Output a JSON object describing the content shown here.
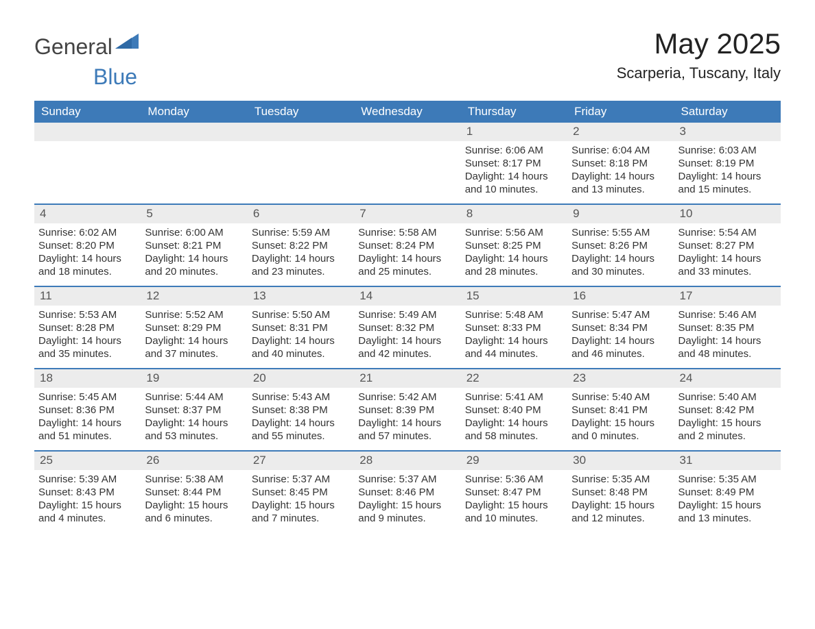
{
  "logo": {
    "text1": "General",
    "text2": "Blue",
    "accent_color": "#3d7ab8"
  },
  "title": "May 2025",
  "location": "Scarperia, Tuscany, Italy",
  "colors": {
    "header_bg": "#3d7ab8",
    "header_text": "#ffffff",
    "daynum_bg": "#ececec",
    "daynum_text": "#555555",
    "body_text": "#333333",
    "rule": "#3d7ab8",
    "page_bg": "#ffffff"
  },
  "typography": {
    "title_fontsize": 42,
    "location_fontsize": 22,
    "dow_fontsize": 17,
    "daynum_fontsize": 17,
    "body_fontsize": 15
  },
  "days_of_week": [
    "Sunday",
    "Monday",
    "Tuesday",
    "Wednesday",
    "Thursday",
    "Friday",
    "Saturday"
  ],
  "weeks": [
    [
      {
        "empty": true
      },
      {
        "empty": true
      },
      {
        "empty": true
      },
      {
        "empty": true
      },
      {
        "n": "1",
        "sunrise": "6:06 AM",
        "sunset": "8:17 PM",
        "daylight": "14 hours and 10 minutes."
      },
      {
        "n": "2",
        "sunrise": "6:04 AM",
        "sunset": "8:18 PM",
        "daylight": "14 hours and 13 minutes."
      },
      {
        "n": "3",
        "sunrise": "6:03 AM",
        "sunset": "8:19 PM",
        "daylight": "14 hours and 15 minutes."
      }
    ],
    [
      {
        "n": "4",
        "sunrise": "6:02 AM",
        "sunset": "8:20 PM",
        "daylight": "14 hours and 18 minutes."
      },
      {
        "n": "5",
        "sunrise": "6:00 AM",
        "sunset": "8:21 PM",
        "daylight": "14 hours and 20 minutes."
      },
      {
        "n": "6",
        "sunrise": "5:59 AM",
        "sunset": "8:22 PM",
        "daylight": "14 hours and 23 minutes."
      },
      {
        "n": "7",
        "sunrise": "5:58 AM",
        "sunset": "8:24 PM",
        "daylight": "14 hours and 25 minutes."
      },
      {
        "n": "8",
        "sunrise": "5:56 AM",
        "sunset": "8:25 PM",
        "daylight": "14 hours and 28 minutes."
      },
      {
        "n": "9",
        "sunrise": "5:55 AM",
        "sunset": "8:26 PM",
        "daylight": "14 hours and 30 minutes."
      },
      {
        "n": "10",
        "sunrise": "5:54 AM",
        "sunset": "8:27 PM",
        "daylight": "14 hours and 33 minutes."
      }
    ],
    [
      {
        "n": "11",
        "sunrise": "5:53 AM",
        "sunset": "8:28 PM",
        "daylight": "14 hours and 35 minutes."
      },
      {
        "n": "12",
        "sunrise": "5:52 AM",
        "sunset": "8:29 PM",
        "daylight": "14 hours and 37 minutes."
      },
      {
        "n": "13",
        "sunrise": "5:50 AM",
        "sunset": "8:31 PM",
        "daylight": "14 hours and 40 minutes."
      },
      {
        "n": "14",
        "sunrise": "5:49 AM",
        "sunset": "8:32 PM",
        "daylight": "14 hours and 42 minutes."
      },
      {
        "n": "15",
        "sunrise": "5:48 AM",
        "sunset": "8:33 PM",
        "daylight": "14 hours and 44 minutes."
      },
      {
        "n": "16",
        "sunrise": "5:47 AM",
        "sunset": "8:34 PM",
        "daylight": "14 hours and 46 minutes."
      },
      {
        "n": "17",
        "sunrise": "5:46 AM",
        "sunset": "8:35 PM",
        "daylight": "14 hours and 48 minutes."
      }
    ],
    [
      {
        "n": "18",
        "sunrise": "5:45 AM",
        "sunset": "8:36 PM",
        "daylight": "14 hours and 51 minutes."
      },
      {
        "n": "19",
        "sunrise": "5:44 AM",
        "sunset": "8:37 PM",
        "daylight": "14 hours and 53 minutes."
      },
      {
        "n": "20",
        "sunrise": "5:43 AM",
        "sunset": "8:38 PM",
        "daylight": "14 hours and 55 minutes."
      },
      {
        "n": "21",
        "sunrise": "5:42 AM",
        "sunset": "8:39 PM",
        "daylight": "14 hours and 57 minutes."
      },
      {
        "n": "22",
        "sunrise": "5:41 AM",
        "sunset": "8:40 PM",
        "daylight": "14 hours and 58 minutes."
      },
      {
        "n": "23",
        "sunrise": "5:40 AM",
        "sunset": "8:41 PM",
        "daylight": "15 hours and 0 minutes."
      },
      {
        "n": "24",
        "sunrise": "5:40 AM",
        "sunset": "8:42 PM",
        "daylight": "15 hours and 2 minutes."
      }
    ],
    [
      {
        "n": "25",
        "sunrise": "5:39 AM",
        "sunset": "8:43 PM",
        "daylight": "15 hours and 4 minutes."
      },
      {
        "n": "26",
        "sunrise": "5:38 AM",
        "sunset": "8:44 PM",
        "daylight": "15 hours and 6 minutes."
      },
      {
        "n": "27",
        "sunrise": "5:37 AM",
        "sunset": "8:45 PM",
        "daylight": "15 hours and 7 minutes."
      },
      {
        "n": "28",
        "sunrise": "5:37 AM",
        "sunset": "8:46 PM",
        "daylight": "15 hours and 9 minutes."
      },
      {
        "n": "29",
        "sunrise": "5:36 AM",
        "sunset": "8:47 PM",
        "daylight": "15 hours and 10 minutes."
      },
      {
        "n": "30",
        "sunrise": "5:35 AM",
        "sunset": "8:48 PM",
        "daylight": "15 hours and 12 minutes."
      },
      {
        "n": "31",
        "sunrise": "5:35 AM",
        "sunset": "8:49 PM",
        "daylight": "15 hours and 13 minutes."
      }
    ]
  ],
  "labels": {
    "sunrise": "Sunrise: ",
    "sunset": "Sunset: ",
    "daylight": "Daylight: "
  }
}
